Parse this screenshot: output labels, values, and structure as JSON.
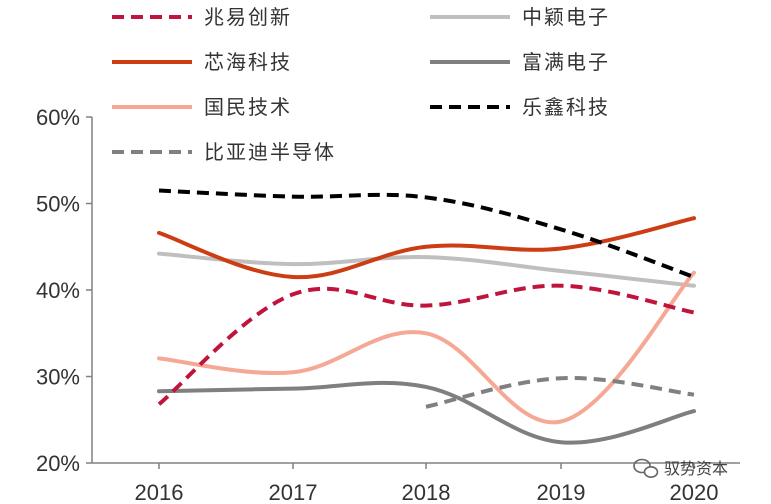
{
  "chart_data": {
    "type": "line",
    "x": [
      "2016",
      "2017",
      "2018",
      "2019",
      "2020"
    ],
    "ylim": [
      20,
      60
    ],
    "yticks": [
      20,
      30,
      40,
      50,
      60
    ],
    "ytick_labels": [
      "20%",
      "30%",
      "40%",
      "50%",
      "60%"
    ],
    "grid": false,
    "legend_position": "top",
    "series": [
      {
        "name": "兆易创新",
        "color": "#c0143c",
        "style": "dashed",
        "values": [
          26.8,
          39.5,
          38.2,
          40.5,
          37.4
        ]
      },
      {
        "name": "中颖电子",
        "color": "#bfbfbf",
        "style": "solid",
        "values": [
          44.2,
          43.0,
          43.8,
          42.2,
          40.5
        ]
      },
      {
        "name": "芯海科技",
        "color": "#cc3d14",
        "style": "solid",
        "values": [
          46.6,
          41.5,
          45.0,
          44.8,
          48.3
        ]
      },
      {
        "name": "富满电子",
        "color": "#7f7f7f",
        "style": "solid",
        "values": [
          28.3,
          28.6,
          28.8,
          22.4,
          26.0
        ]
      },
      {
        "name": "国民技术",
        "color": "#f5a896",
        "style": "solid",
        "values": [
          32.1,
          30.5,
          35.0,
          24.8,
          42.0
        ]
      },
      {
        "name": "乐鑫科技",
        "color": "#000000",
        "style": "dashed",
        "values": [
          51.5,
          50.8,
          50.7,
          47.0,
          41.5
        ]
      },
      {
        "name": "比亚迪半导体",
        "color": "#808080",
        "style": "dashed",
        "values": [
          null,
          null,
          26.5,
          29.8,
          27.9
        ]
      }
    ]
  },
  "watermark": {
    "icon": "wechat-icon",
    "text": "驭势资本"
  }
}
